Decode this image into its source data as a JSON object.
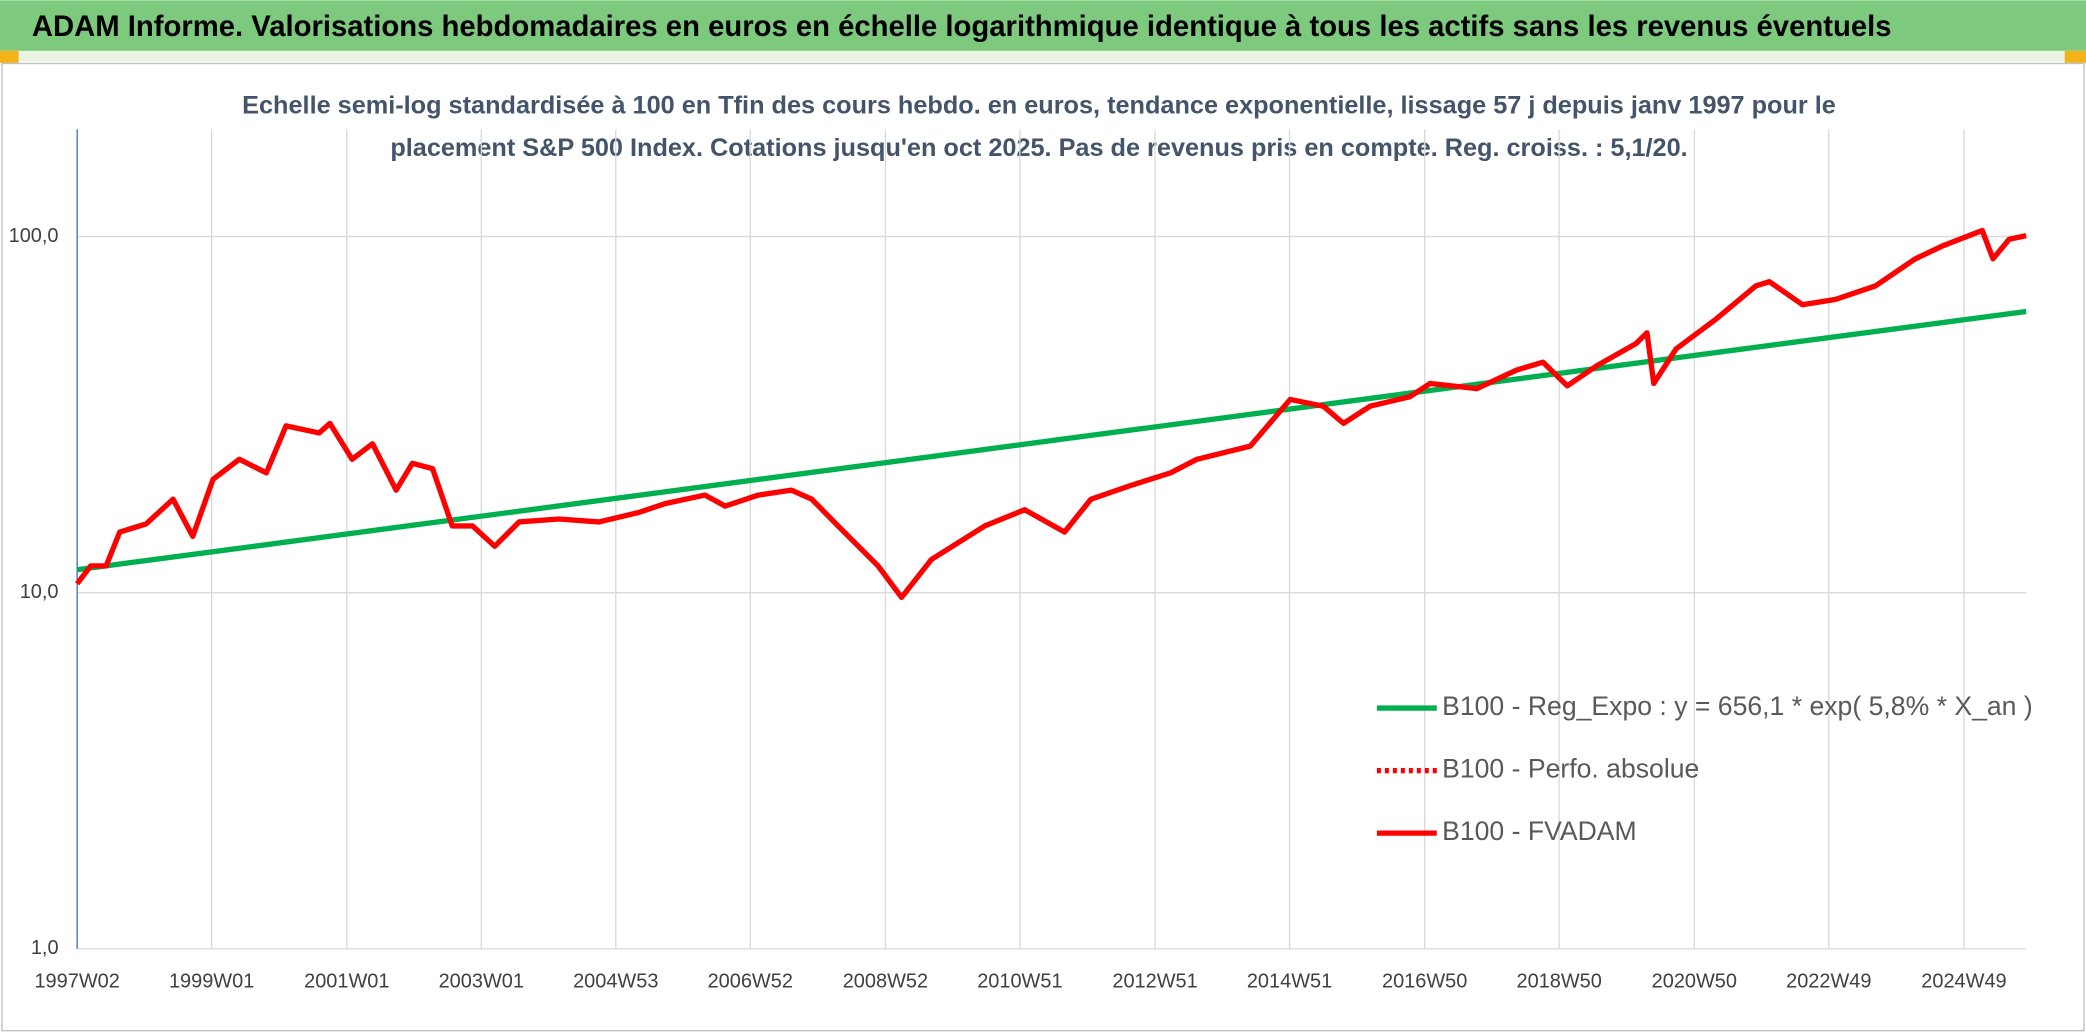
{
  "chart_data": {
    "type": "line",
    "header": "ADAM Informe. Valorisations hebdomadaires en euros en échelle logarithmique identique à tous les actifs sans les revenus éventuels",
    "subtitle": [
      "Echelle semi-log standardisée à 100 en Tfin des cours hebdo. en euros, tendance exponentielle, lissage 57 j depuis janv 1997 pour le",
      "placement S&P 500 Index. Cotations jusqu'en oct 2025. Pas de revenus pris en compte. Reg. croiss. : 5,1/20."
    ],
    "log_y": true,
    "grid": true,
    "legend": "lower right",
    "xlim": [
      1997.02,
      2025.86
    ],
    "ylim": [
      1,
      200
    ],
    "yticks": [
      {
        "value": 1,
        "label": "1,0"
      },
      {
        "value": 10,
        "label": "10,0"
      },
      {
        "value": 100,
        "label": "100,0"
      }
    ],
    "xticks": [
      {
        "value": 1997.02,
        "label": "1997W02"
      },
      {
        "value": 1999.01,
        "label": "1999W01"
      },
      {
        "value": 2001.01,
        "label": "2001W01"
      },
      {
        "value": 2003.0,
        "label": "2003W01"
      },
      {
        "value": 2004.99,
        "label": "2004W53"
      },
      {
        "value": 2006.98,
        "label": "2006W52"
      },
      {
        "value": 2008.98,
        "label": "2008W52"
      },
      {
        "value": 2010.97,
        "label": "2010W51"
      },
      {
        "value": 2012.97,
        "label": "2012W51"
      },
      {
        "value": 2014.96,
        "label": "2014W51"
      },
      {
        "value": 2016.96,
        "label": "2016W50"
      },
      {
        "value": 2018.95,
        "label": "2018W50"
      },
      {
        "value": 2020.95,
        "label": "2020W50"
      },
      {
        "value": 2022.94,
        "label": "2022W49"
      },
      {
        "value": 2024.94,
        "label": "2024W49"
      }
    ],
    "series": [
      {
        "name": "B100 - Reg_Expo : y = 656,1 * exp( 5,8% *  X_an )",
        "color": "#00b050",
        "style": "solid",
        "x": [
          1997.02,
          2025.86
        ],
        "values": [
          11.6,
          61.6
        ]
      },
      {
        "name": "B100 - Perfo. absolue",
        "color": "#ff0000",
        "style": "dotted",
        "x": [
          1997.02,
          1997.22,
          1997.45,
          1997.65,
          1998.04,
          1998.44,
          1998.73,
          1999.03,
          1999.42,
          1999.82,
          2000.11,
          2000.6,
          2000.76,
          2001.09,
          2001.39,
          2001.74,
          2001.98,
          2002.28,
          2002.57,
          2002.87,
          2003.2,
          2003.56,
          2004.15,
          2004.74,
          2005.33,
          2005.72,
          2006.31,
          2006.61,
          2007.1,
          2007.59,
          2007.89,
          2008.28,
          2008.87,
          2009.22,
          2009.66,
          2010.45,
          2011.04,
          2011.63,
          2012.02,
          2012.61,
          2013.2,
          2013.59,
          2014.38,
          2014.97,
          2015.46,
          2015.76,
          2016.15,
          2016.74,
          2017.04,
          2017.73,
          2018.32,
          2018.71,
          2019.07,
          2019.5,
          2020.09,
          2020.25,
          2020.35,
          2020.68,
          2021.27,
          2021.86,
          2022.06,
          2022.55,
          2023.04,
          2023.63,
          2024.22,
          2024.62,
          2025.21,
          2025.37,
          2025.61,
          2025.86
        ],
        "values": [
          10.6,
          11.9,
          11.9,
          14.8,
          15.6,
          18.3,
          14.4,
          20.8,
          23.7,
          21.7,
          29.4,
          28.1,
          29.9,
          23.7,
          26.2,
          19.4,
          23.1,
          22.3,
          15.4,
          15.4,
          13.5,
          15.8,
          16.1,
          15.8,
          16.8,
          17.8,
          18.8,
          17.5,
          18.8,
          19.4,
          18.3,
          15.4,
          11.9,
          9.7,
          12.4,
          15.4,
          17.1,
          14.8,
          18.3,
          20.0,
          21.7,
          23.7,
          25.8,
          34.9,
          33.4,
          29.9,
          33.4,
          35.5,
          38.7,
          37.4,
          42.2,
          44.4,
          38.1,
          43.3,
          50.1,
          53.7,
          38.7,
          48.4,
          58.6,
          72.7,
          74.7,
          64.4,
          66.6,
          72.7,
          86.6,
          94.1,
          104,
          86.6,
          98.3,
          100.6
        ]
      },
      {
        "name": "B100 - FVADAM",
        "color": "#ff0000",
        "style": "solid",
        "x": [
          1997.02,
          1997.22,
          1997.45,
          1997.65,
          1998.04,
          1998.44,
          1998.73,
          1999.03,
          1999.42,
          1999.82,
          2000.11,
          2000.6,
          2000.76,
          2001.09,
          2001.39,
          2001.74,
          2001.98,
          2002.28,
          2002.57,
          2002.87,
          2003.2,
          2003.56,
          2004.15,
          2004.74,
          2005.33,
          2005.72,
          2006.31,
          2006.61,
          2007.1,
          2007.59,
          2007.89,
          2008.28,
          2008.87,
          2009.22,
          2009.66,
          2010.45,
          2011.04,
          2011.63,
          2012.02,
          2012.61,
          2013.2,
          2013.59,
          2014.38,
          2014.97,
          2015.46,
          2015.76,
          2016.15,
          2016.74,
          2017.04,
          2017.73,
          2018.32,
          2018.71,
          2019.07,
          2019.5,
          2020.09,
          2020.25,
          2020.35,
          2020.68,
          2021.27,
          2021.86,
          2022.06,
          2022.55,
          2023.04,
          2023.63,
          2024.22,
          2024.62,
          2025.21,
          2025.37,
          2025.61,
          2025.86
        ],
        "values": [
          10.6,
          11.9,
          11.9,
          14.8,
          15.6,
          18.3,
          14.4,
          20.8,
          23.7,
          21.7,
          29.4,
          28.1,
          29.9,
          23.7,
          26.2,
          19.4,
          23.1,
          22.3,
          15.4,
          15.4,
          13.5,
          15.8,
          16.1,
          15.8,
          16.8,
          17.8,
          18.8,
          17.5,
          18.8,
          19.4,
          18.3,
          15.4,
          11.9,
          9.7,
          12.4,
          15.4,
          17.1,
          14.8,
          18.3,
          20.0,
          21.7,
          23.7,
          25.8,
          34.9,
          33.4,
          29.9,
          33.4,
          35.5,
          38.7,
          37.4,
          42.2,
          44.4,
          38.1,
          43.3,
          50.1,
          53.7,
          38.7,
          48.4,
          58.6,
          72.7,
          74.7,
          64.4,
          66.6,
          72.7,
          86.6,
          94.1,
          104,
          86.6,
          98.3,
          100.6
        ]
      }
    ]
  }
}
